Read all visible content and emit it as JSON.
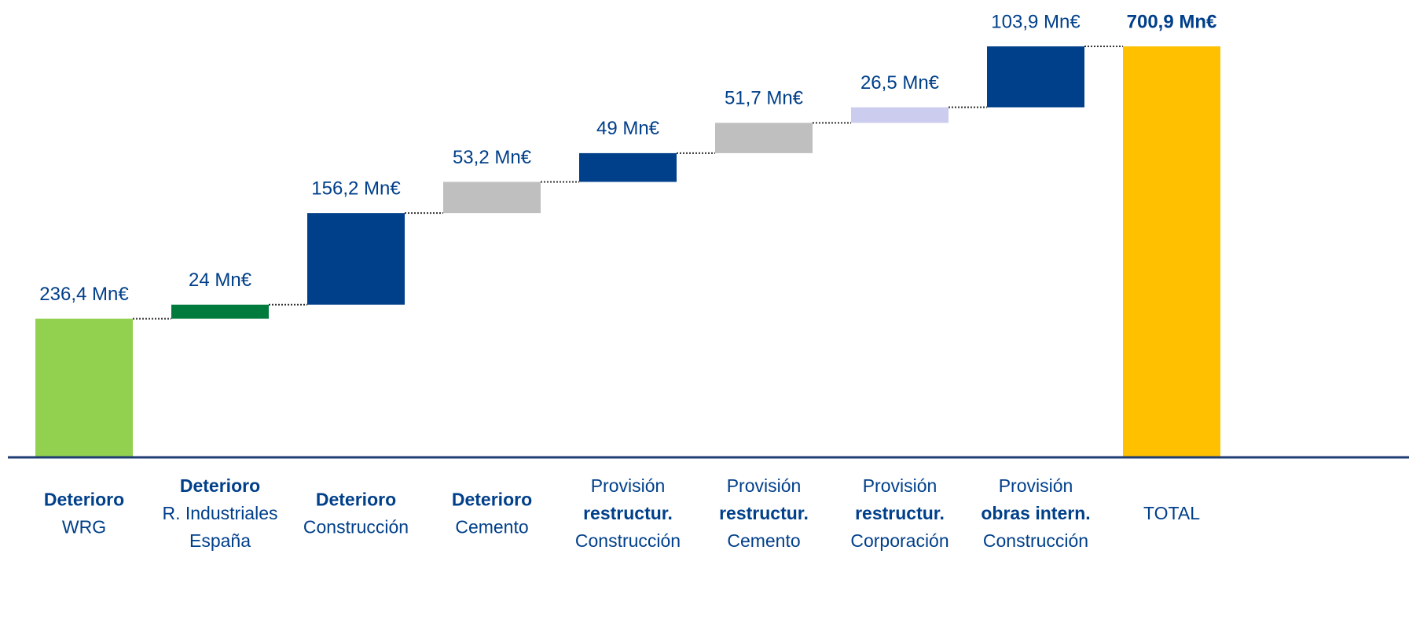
{
  "chart_data": {
    "type": "waterfall",
    "categories": [
      [
        {
          "text": "Deterioro",
          "bold": true
        },
        {
          "text": "WRG",
          "bold": false
        }
      ],
      [
        {
          "text": "Deterioro",
          "bold": true
        },
        {
          "text": "R. Industriales",
          "bold": false
        },
        {
          "text": "España",
          "bold": false
        }
      ],
      [
        {
          "text": "Deterioro",
          "bold": true
        },
        {
          "text": "Construcción",
          "bold": false
        }
      ],
      [
        {
          "text": "Deterioro",
          "bold": true
        },
        {
          "text": "Cemento",
          "bold": false
        }
      ],
      [
        {
          "text": "Provisión",
          "bold": false
        },
        {
          "text": "restructur.",
          "bold": true
        },
        {
          "text": "Construcción",
          "bold": false
        }
      ],
      [
        {
          "text": "Provisión",
          "bold": false
        },
        {
          "text": "restructur.",
          "bold": true
        },
        {
          "text": "Cemento",
          "bold": false
        }
      ],
      [
        {
          "text": "Provisión",
          "bold": false
        },
        {
          "text": "restructur.",
          "bold": true
        },
        {
          "text": "Corporación",
          "bold": false
        }
      ],
      [
        {
          "text": "Provisión",
          "bold": false
        },
        {
          "text": "obras intern.",
          "bold": true
        },
        {
          "text": "Construcción",
          "bold": false
        }
      ],
      [
        {
          "text": "TOTAL",
          "bold": false
        }
      ]
    ],
    "values": [
      236.4,
      24,
      156.2,
      53.2,
      49,
      51.7,
      26.5,
      103.9,
      700.9
    ],
    "value_labels": [
      "236,4 Mn€",
      "24 Mn€",
      "156,2 Mn€",
      "53,2 Mn€",
      "49 Mn€",
      "51,7 Mn€",
      "26,5 Mn€",
      "103,9 Mn€",
      "700,9 Mn€"
    ],
    "measures": [
      "absolute",
      "relative",
      "relative",
      "relative",
      "relative",
      "relative",
      "relative",
      "relative",
      "total"
    ],
    "colors": [
      "#92d050",
      "#007a3d",
      "#003f8a",
      "#bfbfbf",
      "#003f8a",
      "#bfbfbf",
      "#ccccee",
      "#003f8a",
      "#ffc000"
    ],
    "ylim": [
      0,
      780
    ]
  }
}
